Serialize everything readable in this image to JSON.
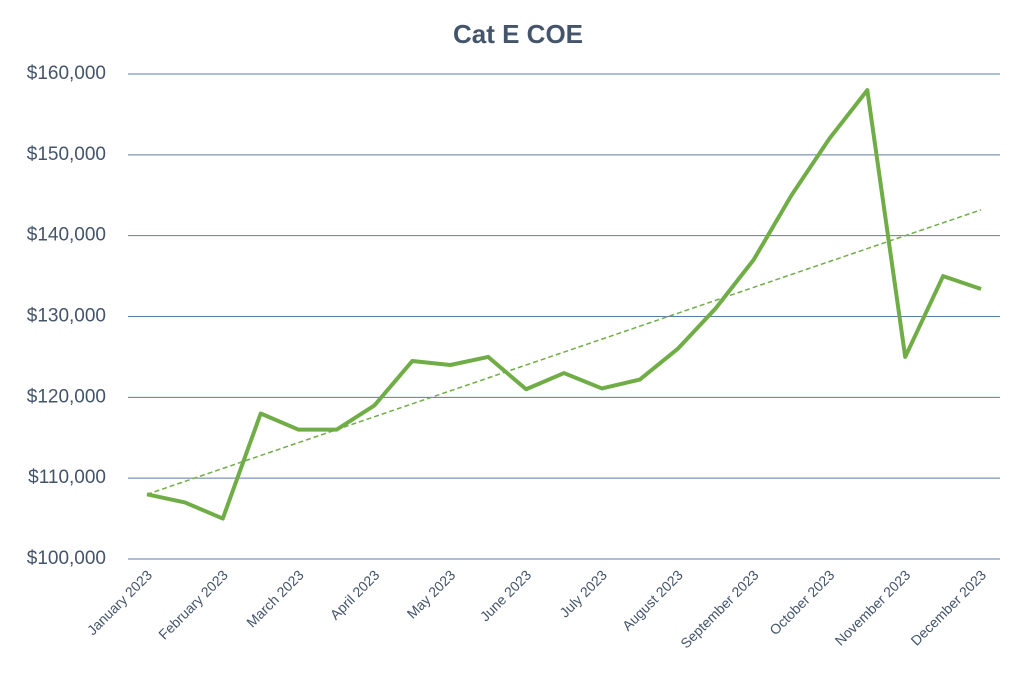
{
  "chart_data": {
    "type": "line",
    "title": "Cat E COE",
    "categories": [
      "January 2023",
      null,
      "February 2023",
      null,
      "March 2023",
      null,
      "April 2023",
      null,
      "May 2023",
      null,
      "June 2023",
      null,
      "July 2023",
      null,
      "August 2023",
      null,
      "September 2023",
      null,
      "October 2023",
      null,
      "November 2023",
      null,
      "December 2023"
    ],
    "series": [
      {
        "color": "#70ad47",
        "values": [
          108000,
          107000,
          105000,
          118000,
          116000,
          116000,
          119000,
          124500,
          124000,
          125000,
          121000,
          123000,
          121100,
          122200,
          126000,
          131000,
          137000,
          145000,
          152000,
          158000,
          125000,
          135000,
          133400
        ]
      }
    ],
    "trendline": {
      "color": "#70ad47",
      "dashed": true,
      "values": [
        108000,
        143200
      ]
    },
    "ylim": [
      100000,
      160000
    ],
    "yticks": [
      {
        "value": 100000,
        "label": "$100,000"
      },
      {
        "value": 110000,
        "label": "$110,000"
      },
      {
        "value": 120000,
        "label": "$120,000"
      },
      {
        "value": 130000,
        "label": "$130,000"
      },
      {
        "value": 140000,
        "label": "$140,000"
      },
      {
        "value": 150000,
        "label": "$150,000"
      },
      {
        "value": 160000,
        "label": "$160,000"
      }
    ],
    "grid": true
  }
}
